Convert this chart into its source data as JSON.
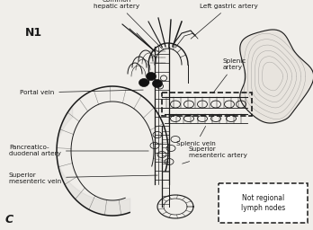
{
  "background_color": "#f0eeea",
  "label_N1": "N1",
  "label_C": "C",
  "labels": {
    "common_hepatic": "Common\nhepatic artery",
    "left_gastric": "Left gastric artery",
    "splenic_artery": "Splenic\nartery",
    "portal_vein": "Portal vein",
    "splenic_vein": "Splenic vein",
    "pancreatico": "Pancreatico-\nduodenal artery",
    "superior_mes_vein": "Superior\nmesenteric vein",
    "superior_mes_artery": "Superior\nmesenteric artery",
    "not_regional": "Not regional\nlymph nodes"
  },
  "fig_width": 3.48,
  "fig_height": 2.56,
  "dpi": 100
}
